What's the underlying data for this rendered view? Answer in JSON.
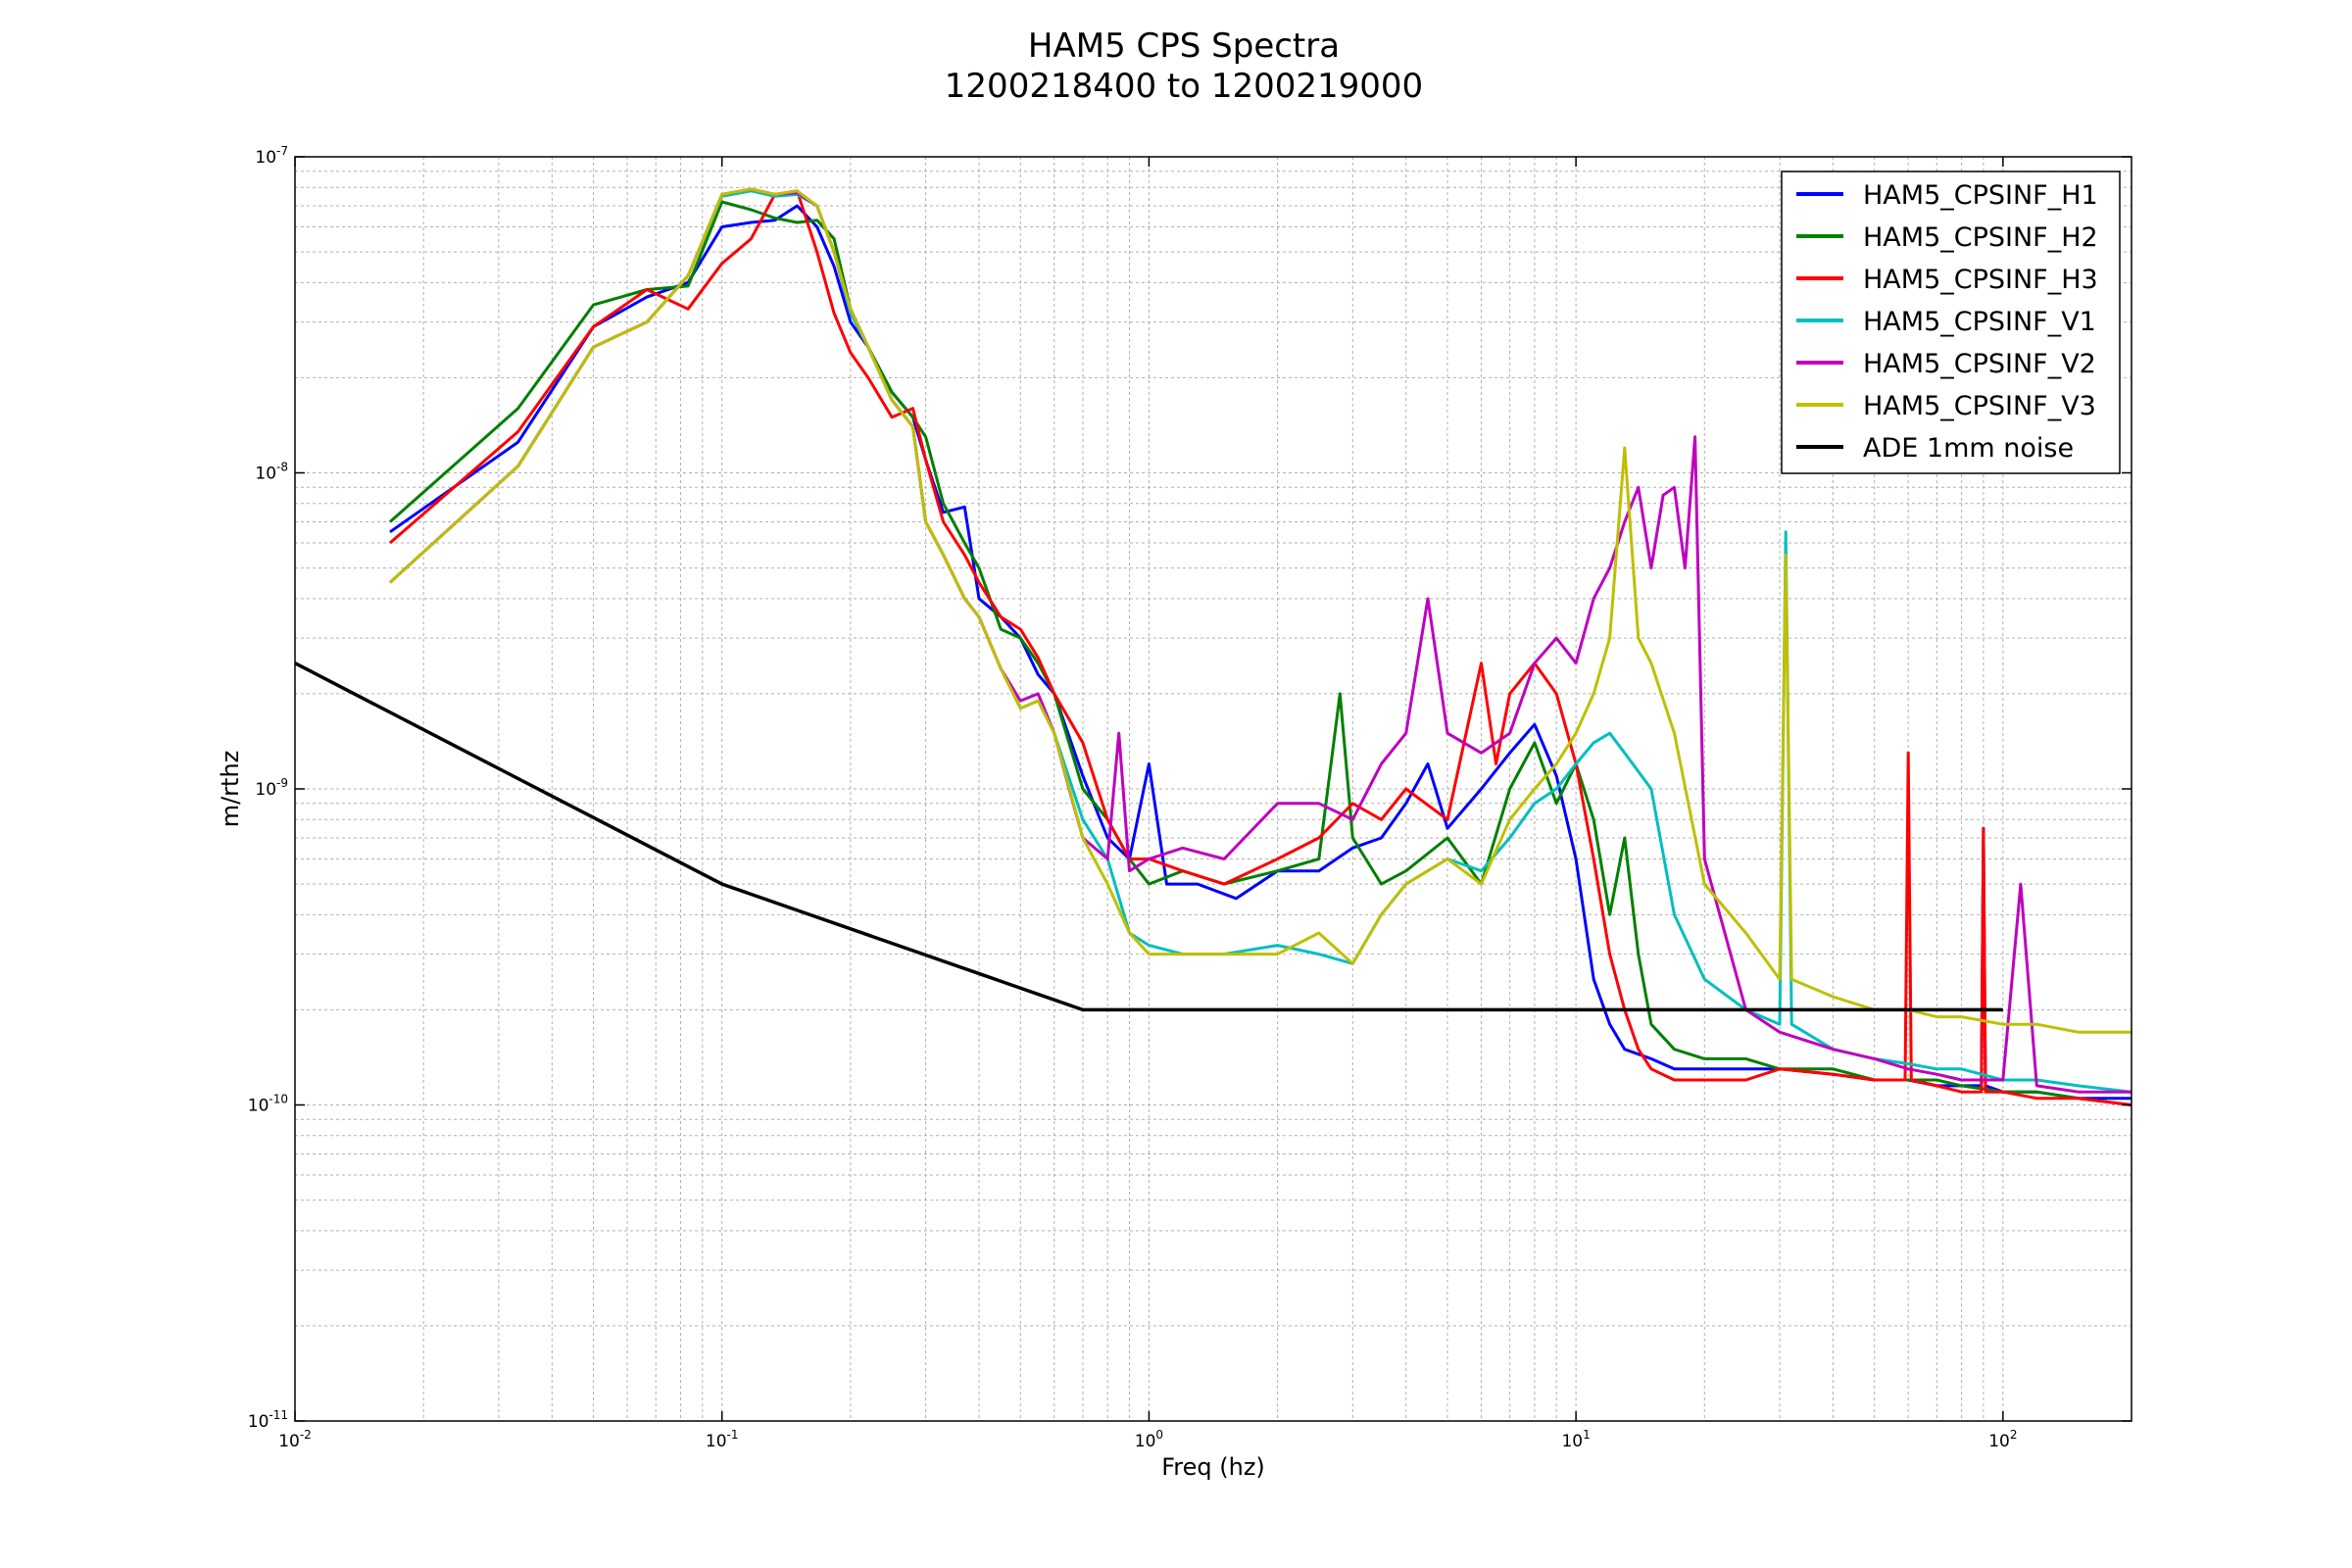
{
  "chart_data": {
    "type": "line",
    "title": "HAM5 CPS Spectra",
    "subtitle": "1200218400 to 1200219000",
    "xlabel": "Freq (hz)",
    "ylabel": "m/rthz",
    "x_scale": "log",
    "y_scale": "log",
    "xlim": [
      0.01,
      200
    ],
    "ylim": [
      1e-11,
      1e-07
    ],
    "grid": true,
    "legend_position": "top-right",
    "x_ticks": [
      {
        "base": "10",
        "exp": "-2",
        "value": 0.01
      },
      {
        "base": "10",
        "exp": "-1",
        "value": 0.1
      },
      {
        "base": "10",
        "exp": "0",
        "value": 1
      },
      {
        "base": "10",
        "exp": "1",
        "value": 10
      },
      {
        "base": "10",
        "exp": "2",
        "value": 100
      }
    ],
    "y_ticks": [
      {
        "base": "10",
        "exp": "-11",
        "value": 1e-11
      },
      {
        "base": "10",
        "exp": "-10",
        "value": 1e-10
      },
      {
        "base": "10",
        "exp": "-9",
        "value": 1e-09
      },
      {
        "base": "10",
        "exp": "-8",
        "value": 1e-08
      },
      {
        "base": "10",
        "exp": "-7",
        "value": 1e-07
      }
    ],
    "series": [
      {
        "name": "HAM5_CPSINF_H1",
        "color": "#0000ff",
        "x": [
          0.0167,
          0.0333,
          0.05,
          0.0667,
          0.0833,
          0.1,
          0.117,
          0.133,
          0.15,
          0.167,
          0.183,
          0.2,
          0.22,
          0.25,
          0.28,
          0.3,
          0.33,
          0.37,
          0.4,
          0.45,
          0.5,
          0.55,
          0.6,
          0.7,
          0.8,
          0.9,
          1.0,
          1.1,
          1.3,
          1.6,
          2.0,
          2.5,
          3.0,
          3.5,
          4.0,
          4.5,
          5.0,
          6.0,
          7.0,
          8.0,
          9.0,
          10.0,
          11.0,
          12.0,
          13.0,
          15.0,
          17.0,
          20.0,
          25.0,
          30.0,
          40.0,
          50.0,
          60.0,
          70.0,
          80.0,
          89.0,
          90.0,
          91.0,
          100.0,
          120.0,
          150.0,
          200.0
        ],
        "y": [
          6.5e-09,
          1.25e-08,
          2.9e-08,
          3.6e-08,
          4e-08,
          6e-08,
          6.2e-08,
          6.3e-08,
          7e-08,
          6e-08,
          4.5e-08,
          3e-08,
          2.5e-08,
          1.8e-08,
          1.5e-08,
          1.1e-08,
          7.5e-09,
          7.8e-09,
          4e-09,
          3.5e-09,
          3e-09,
          2.3e-09,
          2e-09,
          1.1e-09,
          7e-10,
          6e-10,
          1.2e-09,
          5e-10,
          5e-10,
          4.5e-10,
          5.5e-10,
          5.5e-10,
          6.5e-10,
          7e-10,
          9e-10,
          1.2e-09,
          7.5e-10,
          1e-09,
          1.3e-09,
          1.6e-09,
          1.1e-09,
          6e-10,
          2.5e-10,
          1.8e-10,
          1.5e-10,
          1.4e-10,
          1.3e-10,
          1.3e-10,
          1.3e-10,
          1.3e-10,
          1.25e-10,
          1.2e-10,
          1.2e-10,
          1.15e-10,
          1.15e-10,
          1.15e-10,
          7.5e-10,
          1.15e-10,
          1.1e-10,
          1.1e-10,
          1.05e-10,
          1.05e-10
        ]
      },
      {
        "name": "HAM5_CPSINF_H2",
        "color": "#008000",
        "x": [
          0.0167,
          0.0333,
          0.05,
          0.0667,
          0.0833,
          0.1,
          0.117,
          0.133,
          0.15,
          0.167,
          0.183,
          0.2,
          0.22,
          0.25,
          0.28,
          0.3,
          0.33,
          0.37,
          0.4,
          0.45,
          0.5,
          0.55,
          0.6,
          0.7,
          0.8,
          0.9,
          1.0,
          1.2,
          1.5,
          2.0,
          2.5,
          2.8,
          3.0,
          3.5,
          4.0,
          5.0,
          6.0,
          7.0,
          8.0,
          9.0,
          10.0,
          11.0,
          12.0,
          13.0,
          14.0,
          15.0,
          17.0,
          20.0,
          25.0,
          30.0,
          40.0,
          50.0,
          60.0,
          70.0,
          80.0,
          100.0,
          120.0,
          150.0,
          200.0
        ],
        "y": [
          7e-09,
          1.6e-08,
          3.4e-08,
          3.8e-08,
          3.9e-08,
          7.2e-08,
          6.8e-08,
          6.4e-08,
          6.2e-08,
          6.3e-08,
          5.5e-08,
          3.3e-08,
          2.5e-08,
          1.8e-08,
          1.5e-08,
          1.3e-08,
          8e-09,
          6e-09,
          5e-09,
          3.2e-09,
          3e-09,
          2.5e-09,
          2e-09,
          1e-09,
          8e-10,
          6e-10,
          5e-10,
          5.5e-10,
          5e-10,
          5.5e-10,
          6e-10,
          2e-09,
          7e-10,
          5e-10,
          5.5e-10,
          7e-10,
          5e-10,
          1e-09,
          1.4e-09,
          9e-10,
          1.2e-09,
          8e-10,
          4e-10,
          7e-10,
          3e-10,
          1.8e-10,
          1.5e-10,
          1.4e-10,
          1.4e-10,
          1.3e-10,
          1.3e-10,
          1.2e-10,
          1.2e-10,
          1.2e-10,
          1.15e-10,
          1.1e-10,
          1.1e-10,
          1.05e-10,
          1e-10
        ]
      },
      {
        "name": "HAM5_CPSINF_H3",
        "color": "#ff0000",
        "x": [
          0.0167,
          0.0333,
          0.05,
          0.0667,
          0.0833,
          0.1,
          0.117,
          0.133,
          0.15,
          0.167,
          0.183,
          0.2,
          0.22,
          0.25,
          0.28,
          0.3,
          0.33,
          0.37,
          0.4,
          0.45,
          0.5,
          0.55,
          0.6,
          0.7,
          0.8,
          0.9,
          1.0,
          1.2,
          1.5,
          2.0,
          2.5,
          3.0,
          3.5,
          4.0,
          5.0,
          6.0,
          6.5,
          7.0,
          8.0,
          9.0,
          10.0,
          11.0,
          12.0,
          13.0,
          14.0,
          15.0,
          17.0,
          20.0,
          25.0,
          30.0,
          40.0,
          50.0,
          59.0,
          60.0,
          61.0,
          70.0,
          80.0,
          89.0,
          90.0,
          91.0,
          100.0,
          120.0,
          150.0,
          200.0
        ],
        "y": [
          6e-09,
          1.35e-08,
          2.9e-08,
          3.8e-08,
          3.3e-08,
          4.6e-08,
          5.5e-08,
          7.6e-08,
          7.8e-08,
          5e-08,
          3.2e-08,
          2.4e-08,
          2e-08,
          1.5e-08,
          1.6e-08,
          1.1e-08,
          7e-09,
          5.5e-09,
          4.5e-09,
          3.5e-09,
          3.2e-09,
          2.6e-09,
          2e-09,
          1.4e-09,
          8e-10,
          6e-10,
          6e-10,
          5.5e-10,
          5e-10,
          6e-10,
          7e-10,
          9e-10,
          8e-10,
          1e-09,
          8e-10,
          2.5e-09,
          1.2e-09,
          2e-09,
          2.5e-09,
          2e-09,
          1.2e-09,
          6e-10,
          3e-10,
          2e-10,
          1.5e-10,
          1.3e-10,
          1.2e-10,
          1.2e-10,
          1.2e-10,
          1.3e-10,
          1.25e-10,
          1.2e-10,
          1.2e-10,
          1.3e-09,
          1.2e-10,
          1.15e-10,
          1.1e-10,
          1.1e-10,
          7.5e-10,
          1.1e-10,
          1.1e-10,
          1.05e-10,
          1.05e-10,
          1e-10
        ]
      },
      {
        "name": "HAM5_CPSINF_V1",
        "color": "#00bfbf",
        "x": [
          0.0167,
          0.0333,
          0.05,
          0.0667,
          0.0833,
          0.1,
          0.117,
          0.133,
          0.15,
          0.167,
          0.183,
          0.2,
          0.22,
          0.25,
          0.28,
          0.3,
          0.33,
          0.37,
          0.4,
          0.45,
          0.5,
          0.55,
          0.6,
          0.7,
          0.8,
          0.9,
          1.0,
          1.2,
          1.5,
          2.0,
          2.5,
          3.0,
          3.5,
          4.0,
          5.0,
          6.0,
          7.0,
          8.0,
          9.0,
          10.0,
          11.0,
          12.0,
          13.0,
          15.0,
          17.0,
          20.0,
          25.0,
          30.0,
          31.0,
          32.0,
          40.0,
          50.0,
          60.0,
          70.0,
          80.0,
          100.0,
          120.0,
          150.0,
          200.0
        ],
        "y": [
          4.5e-09,
          1.05e-08,
          2.5e-08,
          3e-08,
          4.2e-08,
          7.5e-08,
          7.8e-08,
          7.5e-08,
          7.6e-08,
          7e-08,
          5e-08,
          3.2e-08,
          2.5e-08,
          1.7e-08,
          1.4e-08,
          7e-09,
          5.5e-09,
          4e-09,
          3.5e-09,
          2.4e-09,
          1.8e-09,
          1.9e-09,
          1.5e-09,
          8e-10,
          6e-10,
          3.5e-10,
          3.2e-10,
          3e-10,
          3e-10,
          3.2e-10,
          3e-10,
          2.8e-10,
          4e-10,
          5e-10,
          6e-10,
          5.5e-10,
          7e-10,
          9e-10,
          1e-09,
          1.2e-09,
          1.4e-09,
          1.5e-09,
          1.3e-09,
          1e-09,
          4e-10,
          2.5e-10,
          2e-10,
          1.8e-10,
          6.5e-09,
          1.8e-10,
          1.5e-10,
          1.4e-10,
          1.35e-10,
          1.3e-10,
          1.3e-10,
          1.2e-10,
          1.2e-10,
          1.15e-10,
          1.1e-10
        ]
      },
      {
        "name": "HAM5_CPSINF_V2",
        "color": "#bf00bf",
        "x": [
          0.0167,
          0.0333,
          0.05,
          0.0667,
          0.0833,
          0.1,
          0.117,
          0.133,
          0.15,
          0.167,
          0.183,
          0.2,
          0.22,
          0.25,
          0.28,
          0.3,
          0.33,
          0.37,
          0.4,
          0.45,
          0.5,
          0.55,
          0.6,
          0.65,
          0.7,
          0.8,
          0.85,
          0.9,
          1.0,
          1.2,
          1.5,
          2.0,
          2.5,
          3.0,
          3.5,
          4.0,
          4.5,
          5.0,
          6.0,
          7.0,
          8.0,
          9.0,
          10.0,
          11.0,
          12.0,
          13.0,
          14.0,
          15.0,
          16.0,
          17.0,
          18.0,
          19.0,
          20.0,
          25.0,
          30.0,
          40.0,
          50.0,
          60.0,
          70.0,
          80.0,
          100.0,
          110.0,
          120.0,
          150.0,
          200.0
        ],
        "y": [
          4.5e-09,
          1.05e-08,
          2.5e-08,
          3e-08,
          4.2e-08,
          7.6e-08,
          7.9e-08,
          7.6e-08,
          7.7e-08,
          7e-08,
          5e-08,
          3.3e-08,
          2.5e-08,
          1.7e-08,
          1.4e-08,
          7e-09,
          5.5e-09,
          4e-09,
          3.5e-09,
          2.4e-09,
          1.9e-09,
          2e-09,
          1.5e-09,
          1e-09,
          7e-10,
          6e-10,
          1.5e-09,
          5.5e-10,
          6e-10,
          6.5e-10,
          6e-10,
          9e-10,
          9e-10,
          8e-10,
          1.2e-09,
          1.5e-09,
          4e-09,
          1.5e-09,
          1.3e-09,
          1.5e-09,
          2.5e-09,
          3e-09,
          2.5e-09,
          4e-09,
          5e-09,
          7e-09,
          9e-09,
          5e-09,
          8.5e-09,
          9e-09,
          5e-09,
          1.3e-08,
          6e-10,
          2e-10,
          1.7e-10,
          1.5e-10,
          1.4e-10,
          1.3e-10,
          1.25e-10,
          1.2e-10,
          1.2e-10,
          5e-10,
          1.15e-10,
          1.1e-10,
          1.1e-10
        ]
      },
      {
        "name": "HAM5_CPSINF_V3",
        "color": "#bfbf00",
        "x": [
          0.0167,
          0.0333,
          0.05,
          0.0667,
          0.0833,
          0.1,
          0.117,
          0.133,
          0.15,
          0.167,
          0.183,
          0.2,
          0.22,
          0.25,
          0.28,
          0.3,
          0.33,
          0.37,
          0.4,
          0.45,
          0.5,
          0.55,
          0.6,
          0.7,
          0.8,
          0.9,
          1.0,
          1.2,
          1.5,
          2.0,
          2.5,
          3.0,
          3.5,
          4.0,
          5.0,
          6.0,
          7.0,
          8.0,
          9.0,
          10.0,
          11.0,
          12.0,
          13.0,
          14.0,
          15.0,
          17.0,
          20.0,
          25.0,
          30.0,
          31.0,
          32.0,
          40.0,
          50.0,
          60.0,
          70.0,
          80.0,
          100.0,
          120.0,
          150.0,
          200.0
        ],
        "y": [
          4.5e-09,
          1.05e-08,
          2.5e-08,
          3e-08,
          4.2e-08,
          7.6e-08,
          7.9e-08,
          7.6e-08,
          7.8e-08,
          7e-08,
          5e-08,
          3.3e-08,
          2.5e-08,
          1.7e-08,
          1.4e-08,
          7e-09,
          5.5e-09,
          4e-09,
          3.5e-09,
          2.4e-09,
          1.8e-09,
          1.9e-09,
          1.5e-09,
          7e-10,
          5e-10,
          3.5e-10,
          3e-10,
          3e-10,
          3e-10,
          3e-10,
          3.5e-10,
          2.8e-10,
          4e-10,
          5e-10,
          6e-10,
          5e-10,
          8e-10,
          1e-09,
          1.2e-09,
          1.5e-09,
          2e-09,
          3e-09,
          1.2e-08,
          3e-09,
          2.5e-09,
          1.5e-09,
          5e-10,
          3.5e-10,
          2.5e-10,
          5.5e-09,
          2.5e-10,
          2.2e-10,
          2e-10,
          2e-10,
          1.9e-10,
          1.9e-10,
          1.8e-10,
          1.8e-10,
          1.7e-10,
          1.7e-10
        ]
      },
      {
        "name": "ADE 1mm noise",
        "color": "#000000",
        "x": [
          0.01,
          0.1,
          0.7,
          100
        ],
        "y": [
          2.5e-09,
          5e-10,
          2e-10,
          2e-10
        ]
      }
    ]
  }
}
